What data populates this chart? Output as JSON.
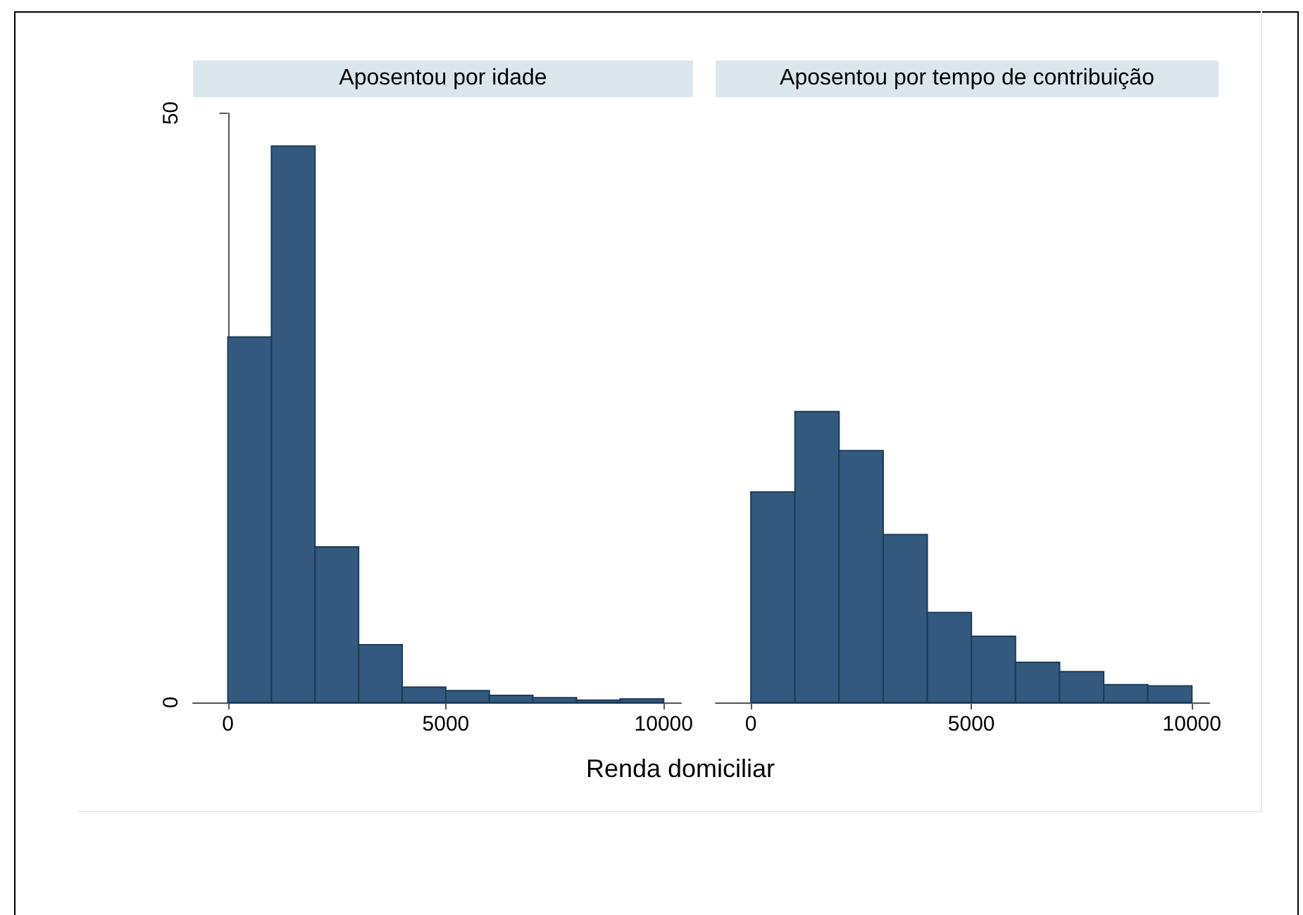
{
  "chart_data": [
    {
      "type": "histogram",
      "title": "Aposentou por idade",
      "xlabel": "Renda domiciliar",
      "bins": [
        0,
        1000,
        2000,
        3000,
        4000,
        5000,
        6000,
        7000,
        8000,
        9000,
        10000
      ],
      "values": [
        31.0,
        47.2,
        13.2,
        4.9,
        1.3,
        1.0,
        0.6,
        0.4,
        0.2,
        0.3
      ],
      "color": "#335a7e",
      "xlim": [
        -800,
        10400
      ],
      "xticks": [
        0,
        5000,
        10000
      ],
      "ylim": [
        0,
        50
      ],
      "yticks": [
        0,
        50
      ],
      "grid": false
    },
    {
      "type": "histogram",
      "title": "Aposentou por tempo de contribuição",
      "bins": [
        0,
        1000,
        2000,
        3000,
        4000,
        5000,
        6000,
        7000,
        8000,
        9000,
        10000
      ],
      "values": [
        17.8,
        24.6,
        21.3,
        14.2,
        7.6,
        5.6,
        3.4,
        2.6,
        1.5,
        1.4
      ],
      "color": "#335a7e",
      "xlim": [
        -800,
        10400
      ],
      "xticks": [
        0,
        5000,
        10000
      ],
      "ylim": [
        0,
        50
      ],
      "grid": false,
      "tick_labels": "x"
    }
  ]
}
